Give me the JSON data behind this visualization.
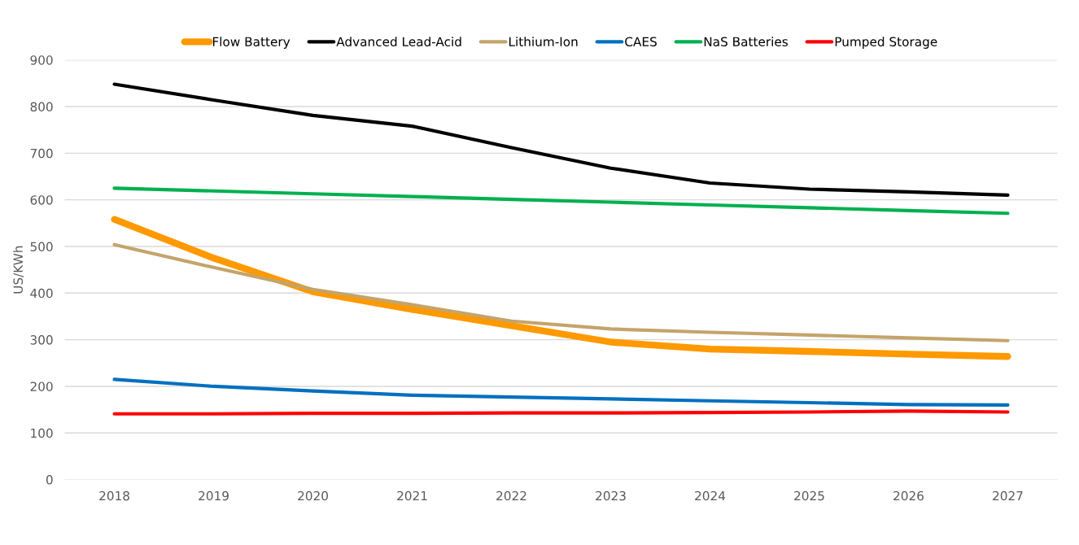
{
  "chart_data": {
    "type": "line",
    "ylabel": "US/KWh",
    "categories": [
      "2018",
      "2019",
      "2020",
      "2021",
      "2022",
      "2023",
      "2024",
      "2025",
      "2026",
      "2027"
    ],
    "series": [
      {
        "name": "Flow Battery",
        "color": "#ff9900",
        "values": [
          558,
          475,
          403,
          365,
          330,
          295,
          280,
          275,
          269,
          264
        ]
      },
      {
        "name": "Advanced Lead-Acid",
        "color": "#000000",
        "values": [
          848,
          814,
          781,
          758,
          712,
          668,
          636,
          623,
          617,
          610
        ]
      },
      {
        "name": "Lithium-Ion",
        "color": "#c4a46b",
        "values": [
          504,
          455,
          408,
          375,
          340,
          323,
          316,
          310,
          304,
          298
        ]
      },
      {
        "name": "CAES",
        "color": "#0070c0",
        "values": [
          215,
          200,
          190,
          181,
          177,
          173,
          169,
          165,
          161,
          160
        ]
      },
      {
        "name": "NaS Batteries",
        "color": "#00b050",
        "values": [
          625,
          619,
          613,
          607,
          601,
          595,
          589,
          583,
          577,
          571
        ]
      },
      {
        "name": "Pumped Storage",
        "color": "#ff0000",
        "values": [
          141,
          141,
          142,
          142,
          143,
          143,
          144,
          145,
          147,
          145
        ]
      }
    ],
    "ylim": [
      0,
      900
    ],
    "yticks": [
      0,
      100,
      200,
      300,
      400,
      500,
      600,
      700,
      800,
      900
    ],
    "grid": "y",
    "legend": "top",
    "marker": "none",
    "line_style": "solid"
  }
}
